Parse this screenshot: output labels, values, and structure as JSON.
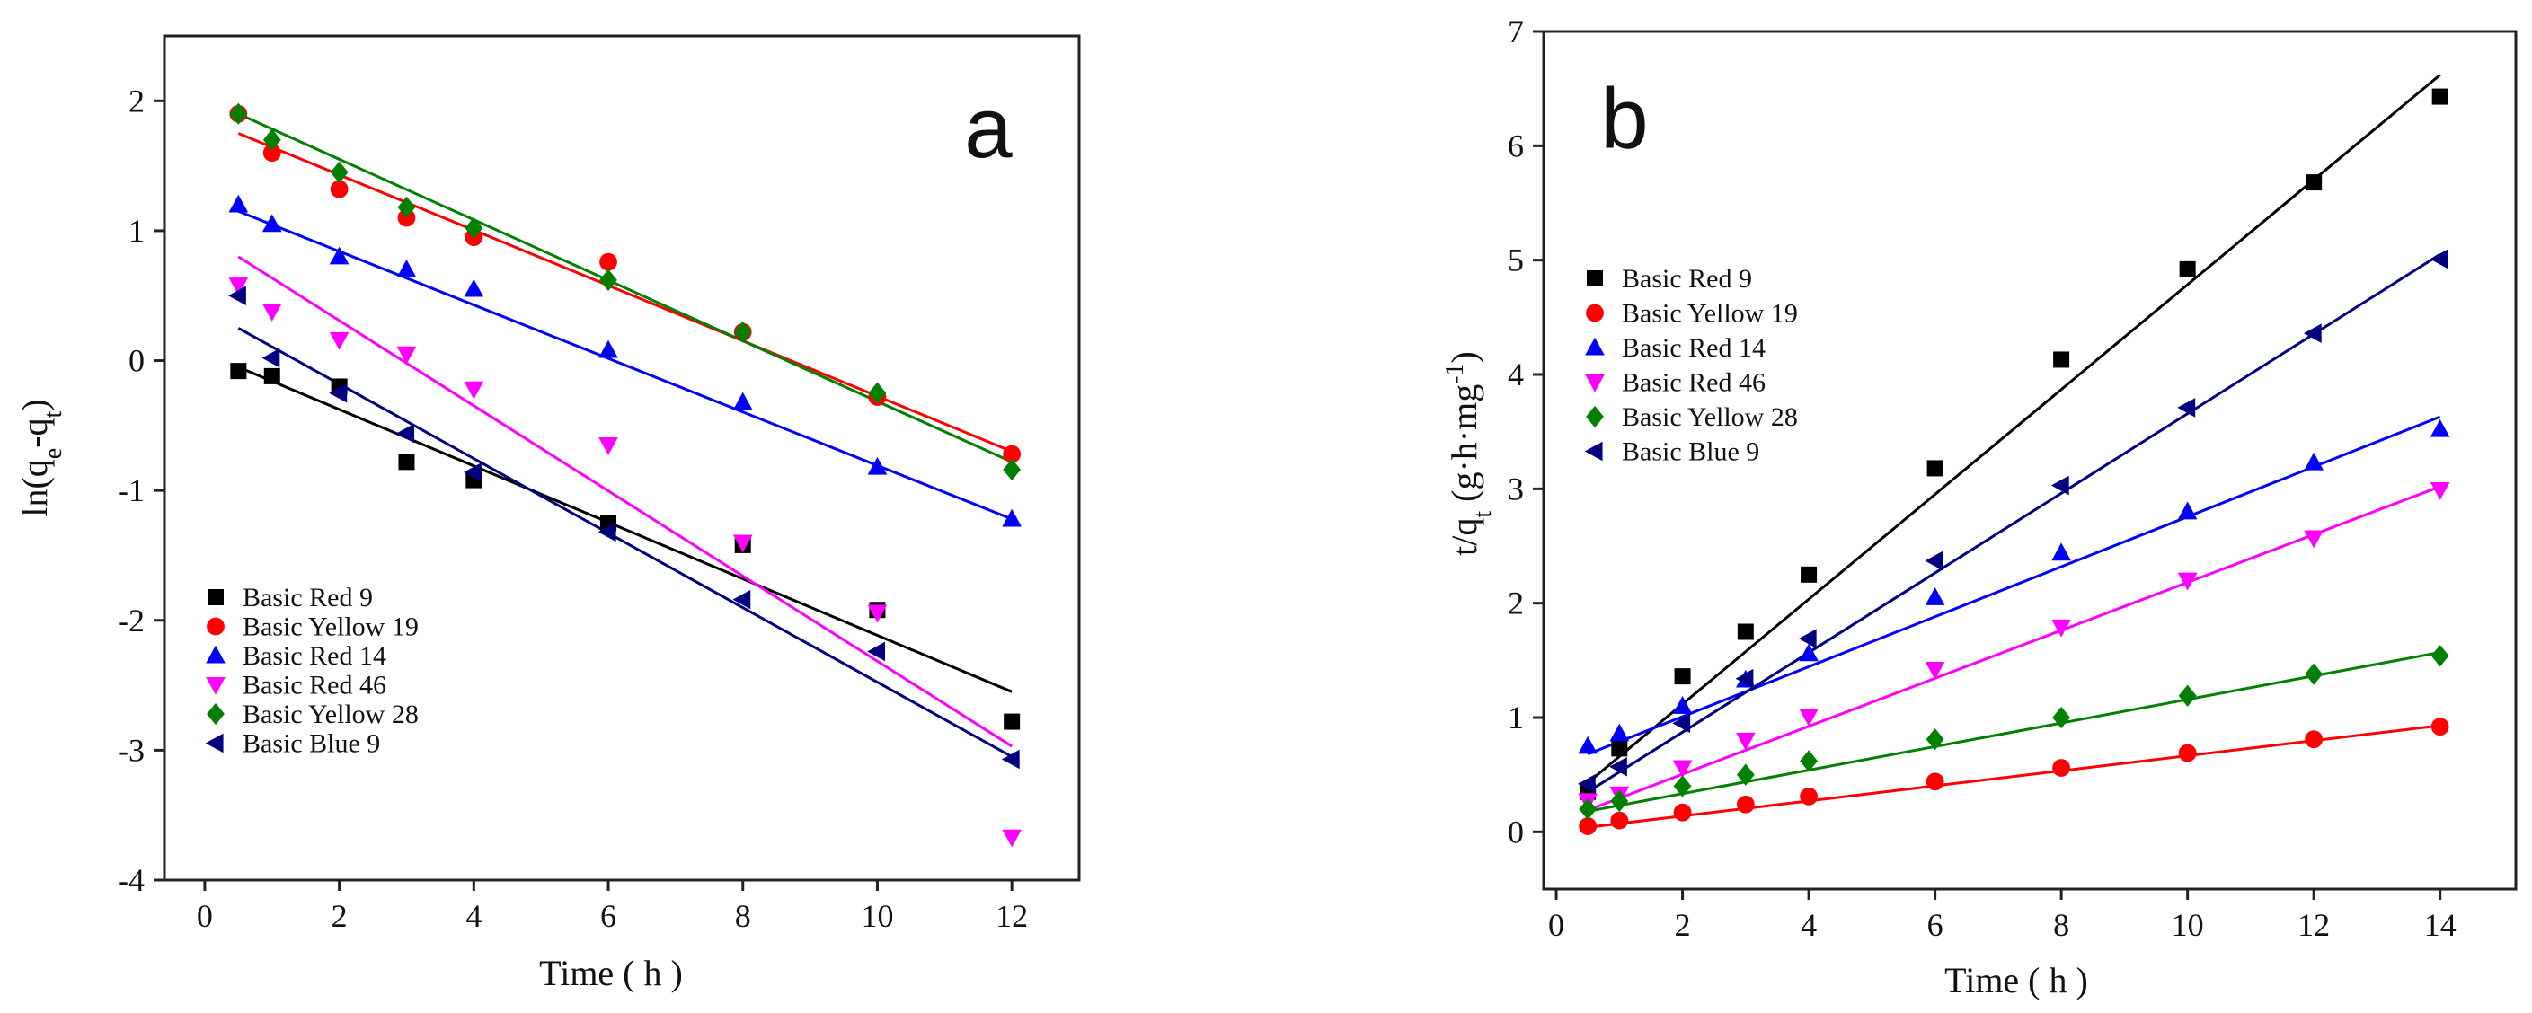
{
  "colors": {
    "Basic Red 9": "#000000",
    "Basic Yellow 19": "#ff0000",
    "Basic Red 14": "#0000ff",
    "Basic Red 46": "#ff00ff",
    "Basic Yellow 28": "#008000",
    "Basic Blue 9": "#000080"
  },
  "chart_data": [
    {
      "type": "scatter",
      "panel": "a",
      "xlabel": "Time ( h )",
      "ylabel": "ln(q_e-q_t)",
      "ylabel_parts": {
        "base": "ln(q",
        "sub1": "e",
        "mid": "-q",
        "sub2": "t",
        "end": ")"
      },
      "xlim": [
        -0.6,
        13
      ],
      "ylim": [
        -4,
        2.5
      ],
      "xticks": [
        "0",
        "2",
        "4",
        "6",
        "8",
        "10",
        "12"
      ],
      "yticks": [
        "-4",
        "-3",
        "-2",
        "-1",
        "0",
        "1",
        "2"
      ],
      "legend_position": "lower-left",
      "series": [
        {
          "name": "Basic Red 9",
          "marker": "square",
          "x": [
            0.5,
            1,
            2,
            3,
            4,
            6,
            8,
            10,
            12
          ],
          "y": [
            -0.08,
            -0.12,
            -0.2,
            -0.78,
            -0.92,
            -1.25,
            -1.42,
            -1.92,
            -2.78
          ],
          "fit": [
            [
              0.5,
              -0.05
            ],
            [
              12,
              -2.55
            ]
          ]
        },
        {
          "name": "Basic Yellow 19",
          "marker": "circle",
          "x": [
            0.5,
            1,
            2,
            3,
            4,
            6,
            8,
            10,
            12
          ],
          "y": [
            1.9,
            1.6,
            1.32,
            1.1,
            0.95,
            0.76,
            0.22,
            -0.28,
            -0.72
          ],
          "fit": [
            [
              0.5,
              1.75
            ],
            [
              12,
              -0.7
            ]
          ]
        },
        {
          "name": "Basic Red 14",
          "marker": "triangle-up",
          "x": [
            0.5,
            1,
            2,
            3,
            4,
            6,
            8,
            10,
            12
          ],
          "y": [
            1.2,
            1.05,
            0.8,
            0.7,
            0.55,
            0.08,
            -0.32,
            -0.82,
            -1.22
          ],
          "fit": [
            [
              0.5,
              1.15
            ],
            [
              12,
              -1.22
            ]
          ]
        },
        {
          "name": "Basic Red 46",
          "marker": "triangle-down",
          "x": [
            0.5,
            1,
            2,
            3,
            4,
            6,
            8,
            10,
            12
          ],
          "y": [
            0.58,
            0.38,
            0.16,
            0.05,
            -0.22,
            -0.65,
            -1.4,
            -1.94,
            -3.67
          ],
          "fit": [
            [
              0.5,
              0.8
            ],
            [
              12,
              -2.97
            ]
          ]
        },
        {
          "name": "Basic Yellow 28",
          "marker": "diamond",
          "x": [
            0.5,
            1,
            2,
            3,
            4,
            6,
            8,
            10,
            12
          ],
          "y": [
            1.9,
            1.7,
            1.45,
            1.18,
            1.02,
            0.62,
            0.22,
            -0.25,
            -0.84
          ],
          "fit": [
            [
              0.5,
              1.9
            ],
            [
              12,
              -0.78
            ]
          ]
        },
        {
          "name": "Basic Blue 9",
          "marker": "triangle-left",
          "x": [
            0.5,
            1,
            2,
            3,
            4,
            6,
            8,
            10,
            12
          ],
          "y": [
            0.5,
            0.02,
            -0.25,
            -0.56,
            -0.86,
            -1.32,
            -1.84,
            -2.24,
            -3.07
          ],
          "fit": [
            [
              0.5,
              0.25
            ],
            [
              12,
              -3.05
            ]
          ]
        }
      ]
    },
    {
      "type": "scatter",
      "panel": "b",
      "xlabel": "Time ( h )",
      "ylabel": "t/q_t (g·h·mg^-1)",
      "ylabel_parts": {
        "base": "t/q",
        "sub1": "t",
        "mid": " (g·h·mg",
        "sup": "-1",
        "end": ")"
      },
      "xlim": [
        -0.2,
        15.2
      ],
      "ylim": [
        -0.5,
        7
      ],
      "xticks": [
        "0",
        "2",
        "4",
        "6",
        "8",
        "10",
        "12",
        "14"
      ],
      "yticks": [
        "0",
        "1",
        "2",
        "3",
        "4",
        "5",
        "6",
        "7"
      ],
      "legend_position": "top-left",
      "series": [
        {
          "name": "Basic Red 9",
          "marker": "square",
          "x": [
            0.5,
            1,
            2,
            3,
            4,
            6,
            8,
            10,
            12,
            14
          ],
          "y": [
            0.35,
            0.73,
            1.36,
            1.75,
            2.25,
            3.18,
            4.13,
            4.92,
            5.68,
            6.43
          ],
          "fit": [
            [
              0.5,
              0.43
            ],
            [
              14,
              6.62
            ]
          ]
        },
        {
          "name": "Basic Yellow 19",
          "marker": "circle",
          "x": [
            0.5,
            1,
            2,
            3,
            4,
            6,
            8,
            10,
            12,
            14
          ],
          "y": [
            0.05,
            0.1,
            0.17,
            0.24,
            0.31,
            0.44,
            0.56,
            0.69,
            0.81,
            0.92
          ],
          "fit": [
            [
              0.5,
              0.04
            ],
            [
              14,
              0.93
            ]
          ]
        },
        {
          "name": "Basic Red 14",
          "marker": "triangle-up",
          "x": [
            0.5,
            1,
            2,
            3,
            4,
            6,
            8,
            10,
            12,
            14
          ],
          "y": [
            0.75,
            0.86,
            1.1,
            1.33,
            1.56,
            2.05,
            2.44,
            2.8,
            3.23,
            3.52
          ],
          "fit": [
            [
              0.5,
              0.68
            ],
            [
              14,
              3.63
            ]
          ]
        },
        {
          "name": "Basic Red 46",
          "marker": "triangle-down",
          "x": [
            0.5,
            1,
            2,
            3,
            4,
            6,
            8,
            10,
            12,
            14
          ],
          "y": [
            0.27,
            0.33,
            0.56,
            0.8,
            1.01,
            1.42,
            1.79,
            2.2,
            2.57,
            2.99
          ],
          "fit": [
            [
              0.5,
              0.19
            ],
            [
              14,
              3.02
            ]
          ]
        },
        {
          "name": "Basic Yellow 28",
          "marker": "diamond",
          "x": [
            0.5,
            1,
            2,
            3,
            4,
            6,
            8,
            10,
            12,
            14
          ],
          "y": [
            0.2,
            0.27,
            0.4,
            0.5,
            0.62,
            0.81,
            1.0,
            1.19,
            1.38,
            1.54
          ],
          "fit": [
            [
              0.5,
              0.18
            ],
            [
              14,
              1.57
            ]
          ]
        },
        {
          "name": "Basic Blue 9",
          "marker": "triangle-left",
          "x": [
            0.5,
            1,
            2,
            3,
            4,
            6,
            8,
            10,
            12,
            14
          ],
          "y": [
            0.42,
            0.57,
            0.95,
            1.34,
            1.69,
            2.37,
            3.03,
            3.71,
            4.36,
            5.01
          ],
          "fit": [
            [
              0.5,
              0.35
            ],
            [
              14,
              5.05
            ]
          ]
        }
      ]
    }
  ]
}
